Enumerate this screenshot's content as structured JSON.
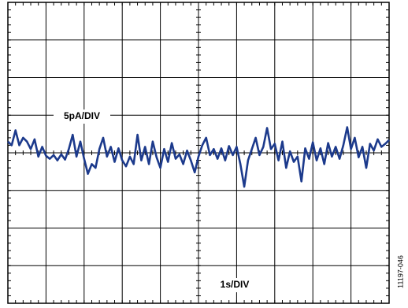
{
  "chart_data": {
    "type": "line",
    "annotations": [
      "5pA/DIV",
      "1s/DIV",
      "11197-046"
    ],
    "x": [
      0,
      0.1,
      0.2,
      0.3,
      0.4,
      0.5,
      0.6,
      0.7,
      0.8,
      0.9,
      1,
      1.1,
      1.2,
      1.3,
      1.4,
      1.5,
      1.6,
      1.7,
      1.8,
      1.9,
      2,
      2.1,
      2.2,
      2.3,
      2.4,
      2.5,
      2.6,
      2.7,
      2.8,
      2.9,
      3,
      3.1,
      3.2,
      3.3,
      3.4,
      3.5,
      3.6,
      3.7,
      3.8,
      3.9,
      4,
      4.1,
      4.2,
      4.3,
      4.4,
      4.5,
      4.6,
      4.7,
      4.8,
      4.9,
      5,
      5.1,
      5.2,
      5.3,
      5.4,
      5.5,
      5.6,
      5.7,
      5.8,
      5.9,
      6,
      6.1,
      6.2,
      6.3,
      6.4,
      6.5,
      6.6,
      6.7,
      6.8,
      6.9,
      7,
      7.1,
      7.2,
      7.3,
      7.4,
      7.5,
      7.6,
      7.7,
      7.8,
      7.9,
      8,
      8.1,
      8.2,
      8.3,
      8.4,
      8.5,
      8.6,
      8.7,
      8.8,
      8.9,
      9,
      9.1,
      9.2,
      9.3,
      9.4,
      9.5,
      9.6,
      9.7,
      9.8,
      9.9,
      10
    ],
    "values": [
      1.5,
      1.0,
      3.0,
      1.0,
      2.0,
      1.5,
      0.5,
      1.8,
      -0.5,
      0.8,
      -0.4,
      -0.8,
      -0.3,
      -1.0,
      -0.2,
      -0.9,
      0.5,
      2.4,
      -0.5,
      1.5,
      -0.8,
      -2.8,
      -1.5,
      -2.0,
      0.5,
      2.0,
      -0.5,
      0.8,
      -1.2,
      0.6,
      -1.0,
      -1.8,
      -0.5,
      -1.5,
      2.4,
      -1.0,
      0.8,
      -1.5,
      1.5,
      -0.6,
      -2.0,
      0.5,
      -1.2,
      1.3,
      -0.8,
      -0.2,
      -1.5,
      0.3,
      -1.0,
      -2.6,
      -0.5,
      1.0,
      2.0,
      -0.3,
      0.5,
      -0.8,
      0.6,
      -1.0,
      0.9,
      -0.3,
      0.8,
      -1.5,
      -4.5,
      -1.0,
      0.5,
      2.0,
      -0.3,
      0.8,
      3.3,
      0.5,
      1.2,
      -1.0,
      1.5,
      -2.0,
      0.2,
      -1.2,
      -0.5,
      -3.8,
      0.6,
      -0.8,
      1.4,
      -1.0,
      0.6,
      -1.5,
      1.3,
      -0.5,
      0.8,
      -0.8,
      1.0,
      3.4,
      0.5,
      2.0,
      -0.6,
      0.8,
      -2.0,
      1.2,
      0.3,
      1.8,
      0.8,
      1.2,
      1.7
    ],
    "color": "#1c3a8c",
    "xlim": [
      0,
      10
    ],
    "xticks": [
      0,
      1,
      2,
      3,
      4,
      5,
      6,
      7,
      8,
      9,
      10
    ],
    "ylim": [
      -20,
      20
    ],
    "yticks": [
      -20,
      -15,
      -10,
      -5,
      0,
      5,
      10,
      15,
      20
    ],
    "grid": true
  }
}
